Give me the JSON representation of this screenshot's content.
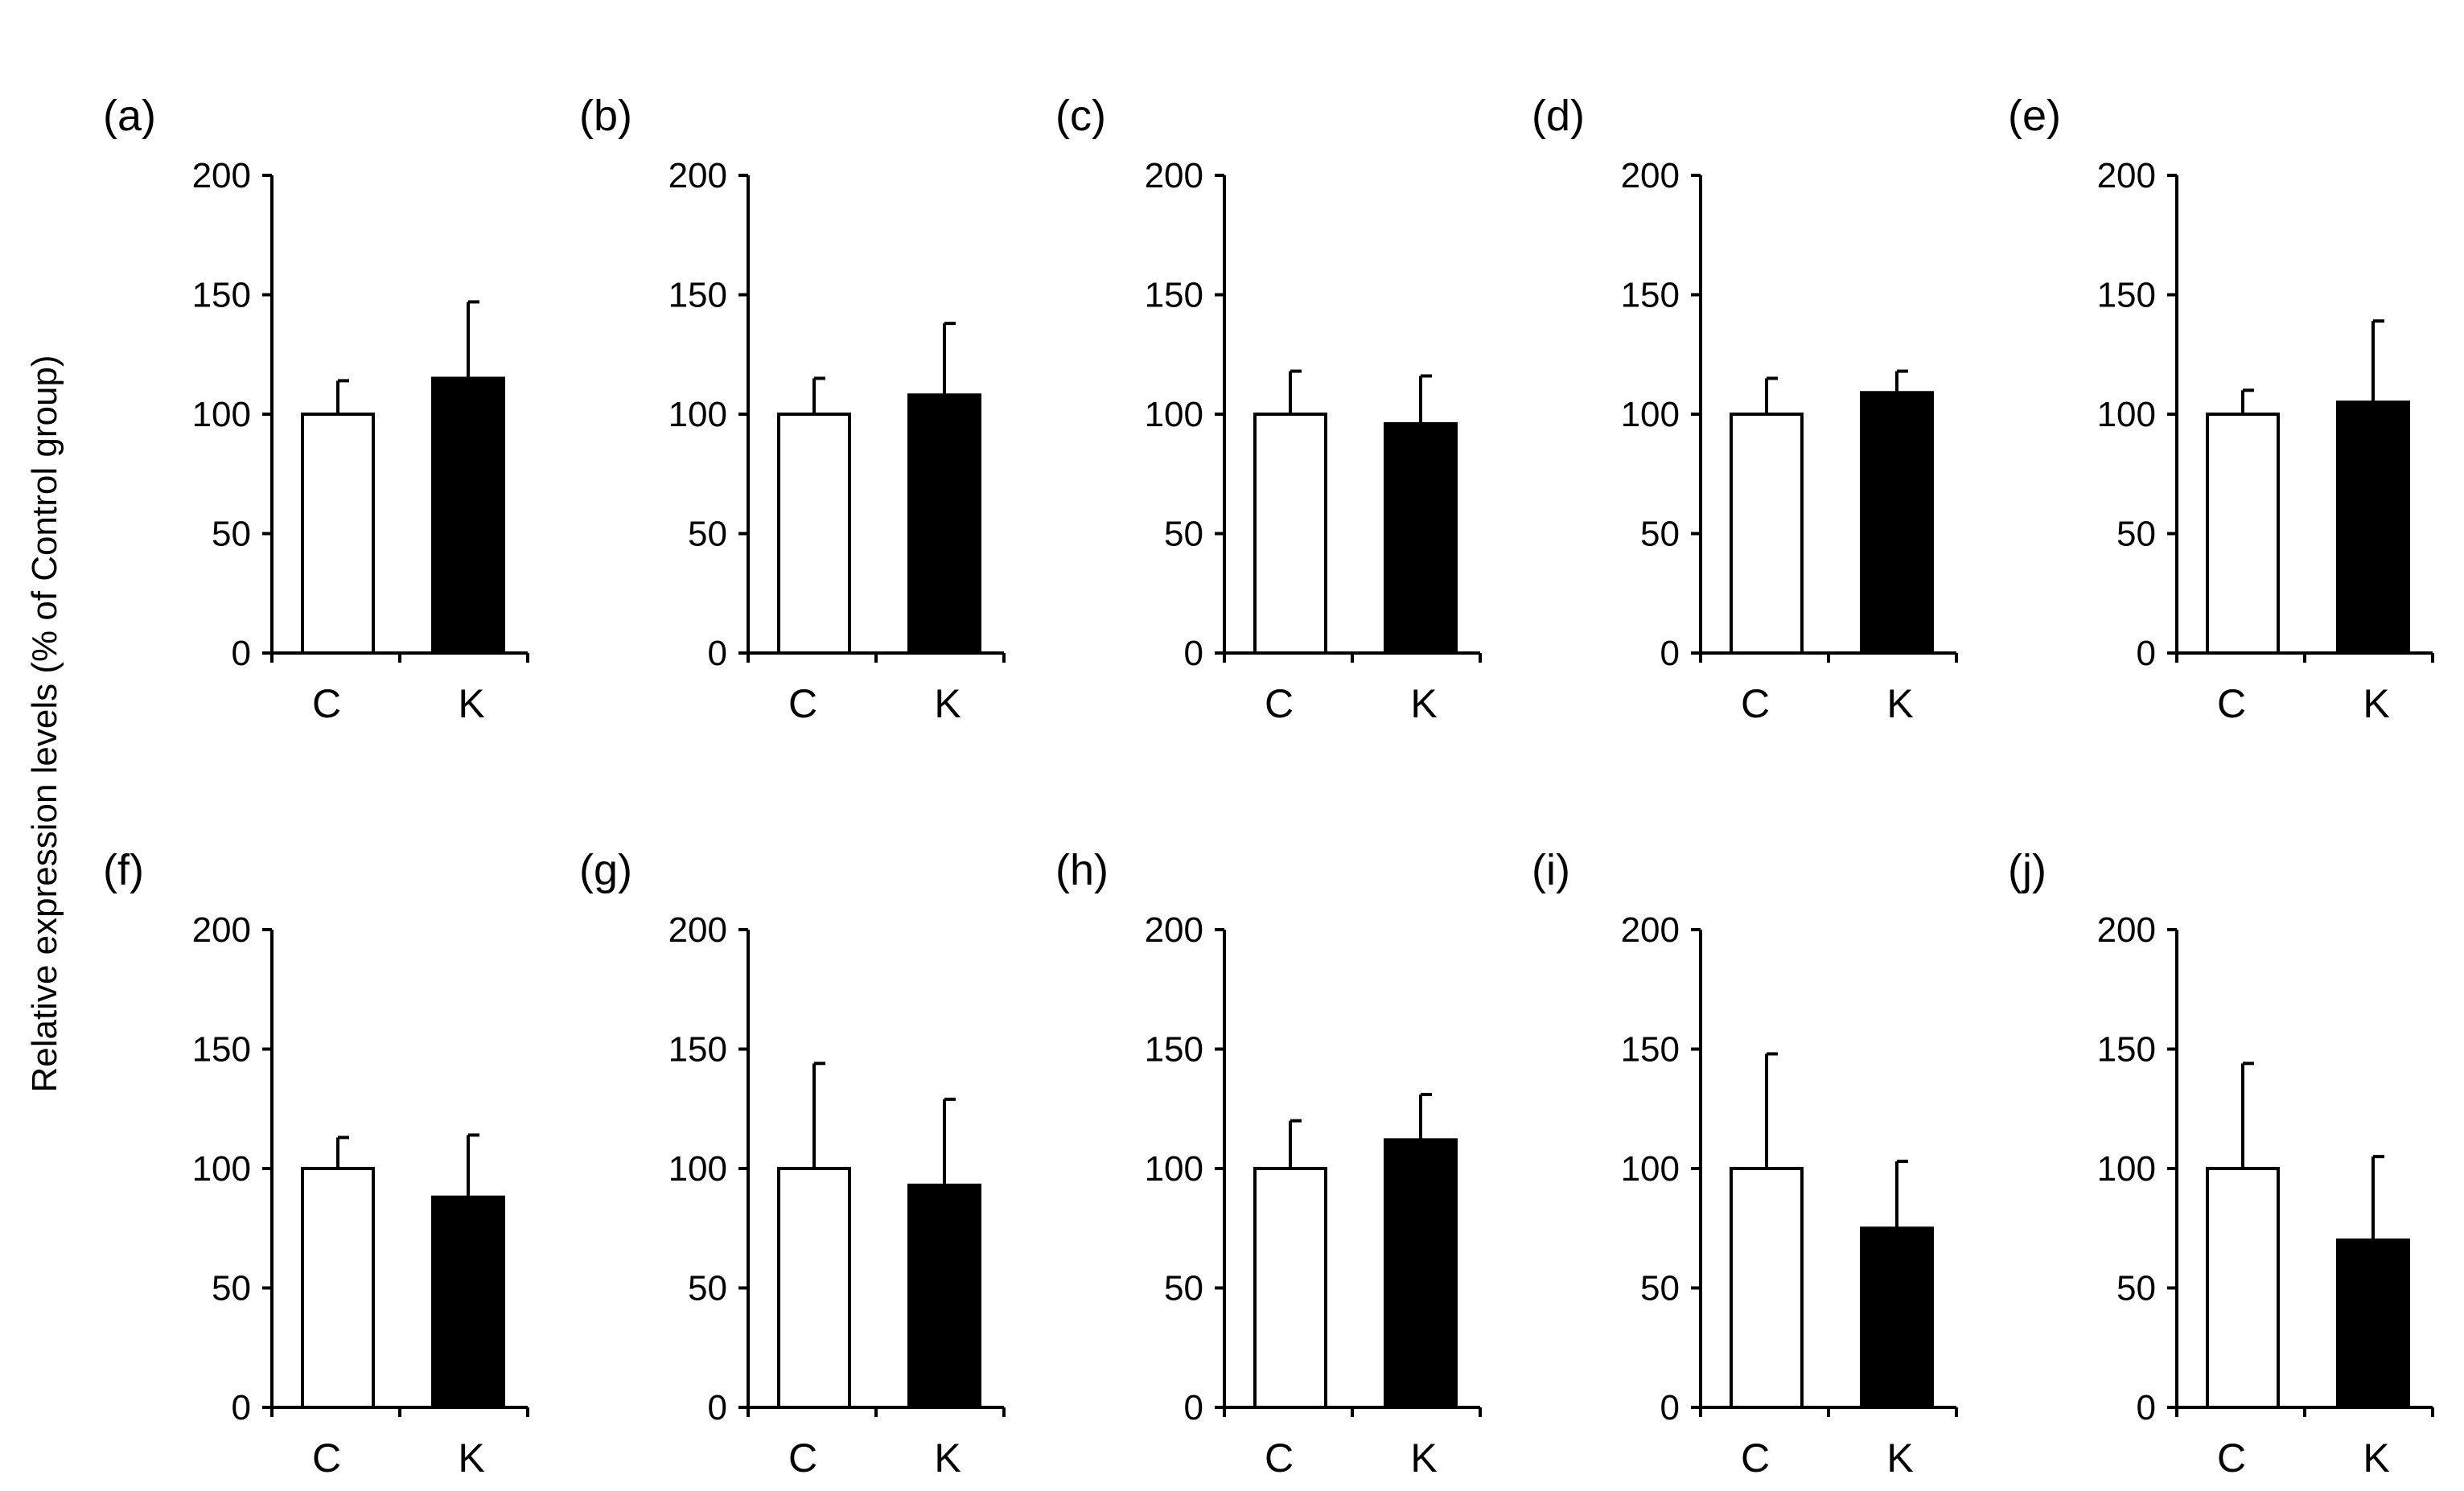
{
  "y_axis_title": "Relative expression levels (% of Control group)",
  "colors": {
    "axis": "#000000",
    "control_fill": "#ffffff",
    "treated_fill": "#000000"
  },
  "chart_data": [
    {
      "type": "bar",
      "panel": "(a)",
      "categories": [
        "C",
        "K"
      ],
      "values": [
        100,
        115
      ],
      "errors": [
        14,
        32
      ],
      "ylim": [
        0,
        200
      ],
      "yticks": [
        "0",
        "50",
        "100",
        "150",
        "200"
      ]
    },
    {
      "type": "bar",
      "panel": "(b)",
      "categories": [
        "C",
        "K"
      ],
      "values": [
        100,
        108
      ],
      "errors": [
        15,
        30
      ],
      "ylim": [
        0,
        200
      ],
      "yticks": [
        "0",
        "50",
        "100",
        "150",
        "200"
      ]
    },
    {
      "type": "bar",
      "panel": "(c)",
      "categories": [
        "C",
        "K"
      ],
      "values": [
        100,
        96
      ],
      "errors": [
        18,
        20
      ],
      "ylim": [
        0,
        200
      ],
      "yticks": [
        "0",
        "50",
        "100",
        "150",
        "200"
      ]
    },
    {
      "type": "bar",
      "panel": "(d)",
      "categories": [
        "C",
        "K"
      ],
      "values": [
        100,
        109
      ],
      "errors": [
        15,
        9
      ],
      "ylim": [
        0,
        200
      ],
      "yticks": [
        "0",
        "50",
        "100",
        "150",
        "200"
      ]
    },
    {
      "type": "bar",
      "panel": "(e)",
      "categories": [
        "C",
        "K"
      ],
      "values": [
        100,
        105
      ],
      "errors": [
        10,
        34
      ],
      "ylim": [
        0,
        200
      ],
      "yticks": [
        "0",
        "50",
        "100",
        "150",
        "200"
      ]
    },
    {
      "type": "bar",
      "panel": "(f)",
      "categories": [
        "C",
        "K"
      ],
      "values": [
        100,
        88
      ],
      "errors": [
        13,
        26
      ],
      "ylim": [
        0,
        200
      ],
      "yticks": [
        "0",
        "50",
        "100",
        "150",
        "200"
      ]
    },
    {
      "type": "bar",
      "panel": "(g)",
      "categories": [
        "C",
        "K"
      ],
      "values": [
        100,
        93
      ],
      "errors": [
        44,
        36
      ],
      "ylim": [
        0,
        200
      ],
      "yticks": [
        "0",
        "50",
        "100",
        "150",
        "200"
      ]
    },
    {
      "type": "bar",
      "panel": "(h)",
      "categories": [
        "C",
        "K"
      ],
      "values": [
        100,
        112
      ],
      "errors": [
        20,
        19
      ],
      "ylim": [
        0,
        200
      ],
      "yticks": [
        "0",
        "50",
        "100",
        "150",
        "200"
      ]
    },
    {
      "type": "bar",
      "panel": "(i)",
      "categories": [
        "C",
        "K"
      ],
      "values": [
        100,
        75
      ],
      "errors": [
        48,
        28
      ],
      "ylim": [
        0,
        200
      ],
      "yticks": [
        "0",
        "50",
        "100",
        "150",
        "200"
      ]
    },
    {
      "type": "bar",
      "panel": "(j)",
      "categories": [
        "C",
        "K"
      ],
      "values": [
        100,
        70
      ],
      "errors": [
        44,
        35
      ],
      "ylim": [
        0,
        200
      ],
      "yticks": [
        "0",
        "50",
        "100",
        "150",
        "200"
      ]
    }
  ]
}
